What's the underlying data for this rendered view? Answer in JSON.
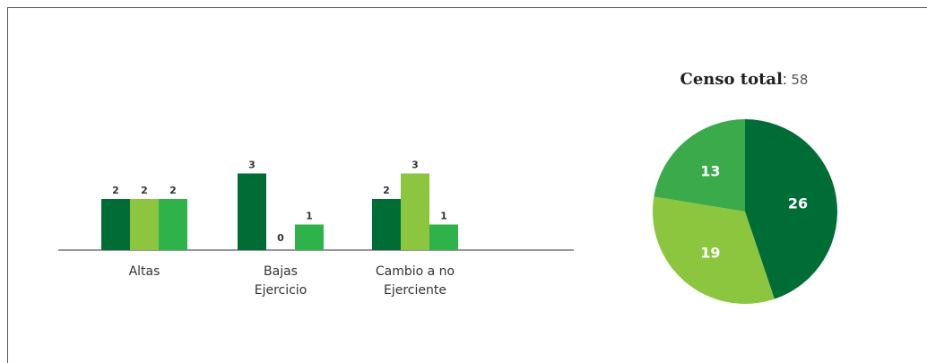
{
  "chart_data": [
    {
      "type": "bar",
      "categories": [
        [
          "Altas"
        ],
        [
          "Bajas",
          "Ejercicio"
        ],
        [
          "Cambio a no",
          "Ejerciente"
        ]
      ],
      "series": [
        {
          "values": [
            2,
            3,
            2
          ],
          "color": "#006d36"
        },
        {
          "values": [
            2,
            0,
            3
          ],
          "color": "#8cc63f"
        },
        {
          "values": [
            2,
            1,
            1
          ],
          "color": "#2db34a"
        }
      ],
      "ylim": [
        0,
        3
      ]
    },
    {
      "type": "pie",
      "title": "Censo total",
      "total": "58",
      "slices": [
        {
          "value": 26,
          "color": "#006d36"
        },
        {
          "value": 19,
          "color": "#8cc63f"
        },
        {
          "value": 13,
          "color": "#3aaa4b"
        }
      ]
    }
  ]
}
